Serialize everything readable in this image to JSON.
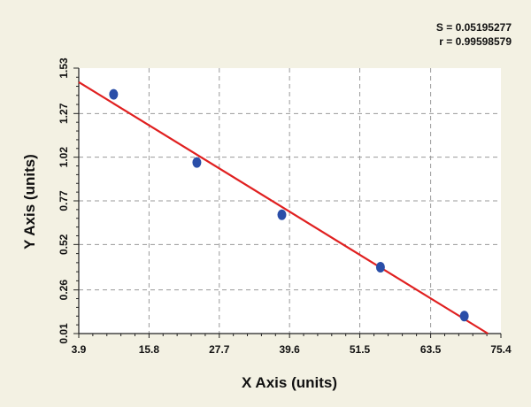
{
  "stats": {
    "s_label": "S = 0.05195277",
    "r_label": "r = 0.99598579"
  },
  "chart_data": {
    "type": "scatter",
    "xlabel": "X Axis (units)",
    "ylabel": "Y Axis (units)",
    "xlim": [
      3.9,
      75.4
    ],
    "ylim": [
      0.01,
      1.53
    ],
    "x_ticks": [
      "3.9",
      "15.8",
      "27.7",
      "39.6",
      "51.5",
      "63.5",
      "75.4"
    ],
    "x_tick_values": [
      3.9,
      15.8,
      27.7,
      39.6,
      51.5,
      63.5,
      75.4
    ],
    "y_ticks": [
      "0.01",
      "0.26",
      "0.52",
      "0.77",
      "1.02",
      "1.27",
      "1.53"
    ],
    "y_tick_values": [
      0.01,
      0.26,
      0.52,
      0.77,
      1.02,
      1.27,
      1.53
    ],
    "grid": true,
    "series": [
      {
        "marker_color": "#2a4ea8",
        "x": [
          9.8,
          23.9,
          38.3,
          55.0,
          69.2
        ],
        "y": [
          1.38,
          0.99,
          0.69,
          0.39,
          0.11
        ]
      }
    ],
    "fit_line": {
      "color": "#e02020",
      "x": [
        3.9,
        73.2
      ],
      "y": [
        1.45,
        0.01
      ]
    }
  }
}
